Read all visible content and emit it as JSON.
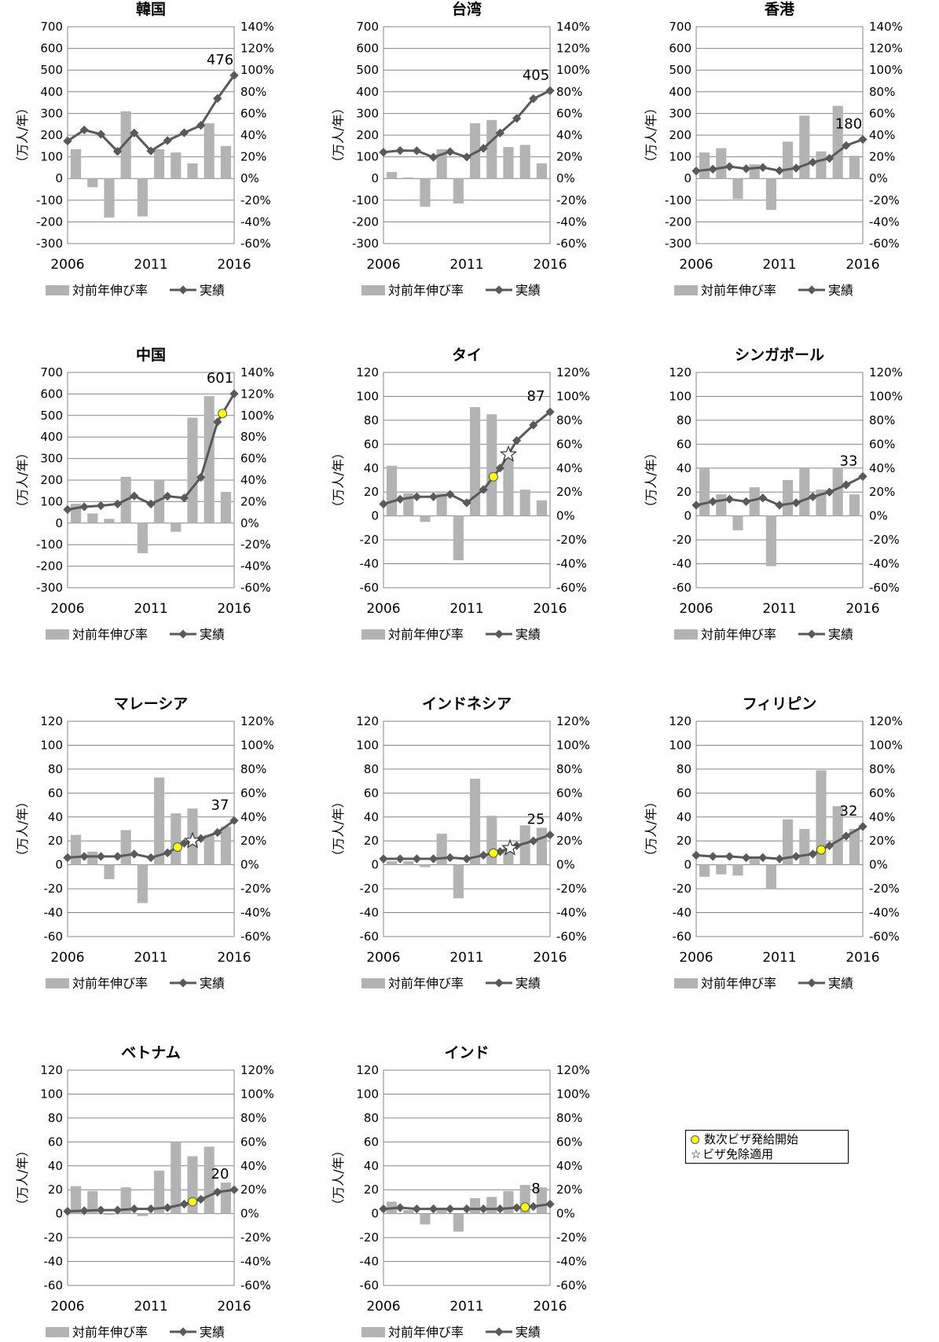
{
  "legend": {
    "bar_label": "対前年伸び率",
    "line_label": "実績"
  },
  "notes": {
    "multi_visa": "数次ビザ発給開始",
    "visa_exempt": "ビザ免除適用"
  },
  "marker_colors": {
    "multi_visa": "#ffff00",
    "visa_exempt": "#ffffff"
  },
  "colors": {
    "bar": "#b3b3b3",
    "line": "#595959"
  },
  "chart_data": [
    {
      "type": "bar+line",
      "title": "韓国",
      "ylabel": "（万人/年）",
      "ylim": [
        -300,
        700
      ],
      "y_ticks": [
        -300,
        -200,
        -100,
        0,
        100,
        200,
        300,
        400,
        500,
        600,
        700
      ],
      "y2lim": [
        -60,
        140
      ],
      "y2_ticks": [
        "-60%",
        "-40%",
        "-20%",
        "0%",
        "20%",
        "40%",
        "60%",
        "80%",
        "100%",
        "120%",
        "140%"
      ],
      "x": [
        2006,
        2007,
        2008,
        2009,
        2010,
        2011,
        2012,
        2013,
        2014,
        2015,
        2016
      ],
      "x_ticks": [
        "2006",
        "2011",
        "2016"
      ],
      "series": [
        {
          "name": "対前年伸び率",
          "type": "bar",
          "values": [
            null,
            27,
            -8,
            -36,
            62,
            -35,
            27,
            24,
            14,
            51,
            30
          ]
        },
        {
          "name": "実績",
          "type": "line",
          "values": [
            173,
            224,
            204,
            125,
            210,
            127,
            175,
            211,
            245,
            369,
            476
          ]
        }
      ],
      "last_label": "476",
      "multi_visa_year": null,
      "visa_exempt_year": null
    },
    {
      "type": "bar+line",
      "title": "台湾",
      "ylabel": "（万人/年）",
      "ylim": [
        -300,
        700
      ],
      "y_ticks": [
        -300,
        -200,
        -100,
        0,
        100,
        200,
        300,
        400,
        500,
        600,
        700
      ],
      "y2lim": [
        -60,
        140
      ],
      "y2_ticks": [
        "-60%",
        "-40%",
        "-20%",
        "0%",
        "20%",
        "40%",
        "60%",
        "80%",
        "100%",
        "120%",
        "140%"
      ],
      "x": [
        2006,
        2007,
        2008,
        2009,
        2010,
        2011,
        2012,
        2013,
        2014,
        2015,
        2016
      ],
      "x_ticks": [
        "2006",
        "2011",
        "2016"
      ],
      "series": [
        {
          "name": "対前年伸び率",
          "type": "bar",
          "values": [
            null,
            6,
            1,
            -26,
            27,
            -23,
            51,
            54,
            29,
            31,
            14
          ]
        },
        {
          "name": "実績",
          "type": "line",
          "values": [
            121,
            129,
            128,
            98,
            124,
            99,
            139,
            210,
            277,
            368,
            405
          ]
        }
      ],
      "last_label": "405",
      "multi_visa_year": null,
      "visa_exempt_year": null
    },
    {
      "type": "bar+line",
      "title": "香港",
      "ylabel": "（万人/年）",
      "ylim": [
        -300,
        700
      ],
      "y_ticks": [
        -300,
        -200,
        -100,
        0,
        100,
        200,
        300,
        400,
        500,
        600,
        700
      ],
      "y2lim": [
        -60,
        140
      ],
      "y2_ticks": [
        "-60%",
        "-40%",
        "-20%",
        "0%",
        "20%",
        "40%",
        "60%",
        "80%",
        "100%",
        "120%",
        "140%"
      ],
      "x": [
        2006,
        2007,
        2008,
        2009,
        2010,
        2011,
        2012,
        2013,
        2014,
        2015,
        2016
      ],
      "x_ticks": [
        "2006",
        "2011",
        "2016"
      ],
      "series": [
        {
          "name": "対前年伸び率",
          "type": "bar",
          "values": [
            null,
            24,
            28,
            -19,
            13,
            -29,
            34,
            58,
            25,
            67,
            21
          ]
        },
        {
          "name": "実績",
          "type": "line",
          "values": [
            35,
            43,
            55,
            45,
            51,
            36,
            48,
            75,
            93,
            152,
            180
          ]
        }
      ],
      "last_label": "180",
      "multi_visa_year": null,
      "visa_exempt_year": null
    },
    {
      "type": "bar+line",
      "title": "中国",
      "ylabel": "（万人/年）",
      "ylim": [
        -300,
        700
      ],
      "y_ticks": [
        -300,
        -200,
        -100,
        0,
        100,
        200,
        300,
        400,
        500,
        600,
        700
      ],
      "y2lim": [
        -60,
        140
      ],
      "y2_ticks": [
        "-60%",
        "-40%",
        "-20%",
        "0%",
        "20%",
        "40%",
        "60%",
        "80%",
        "100%",
        "120%",
        "140%"
      ],
      "x": [
        2006,
        2007,
        2008,
        2009,
        2010,
        2011,
        2012,
        2013,
        2014,
        2015,
        2016
      ],
      "x_ticks": [
        "2006",
        "2011",
        "2016"
      ],
      "series": [
        {
          "name": "対前年伸び率",
          "type": "bar",
          "values": [
            null,
            18,
            9,
            4,
            43,
            -28,
            40,
            -8,
            98,
            118,
            29
          ]
        },
        {
          "name": "実績",
          "type": "line",
          "values": [
            63,
            76,
            81,
            89,
            126,
            89,
            125,
            117,
            213,
            470,
            601
          ]
        }
      ],
      "last_label": "601",
      "multi_visa_year": 2015.3,
      "visa_exempt_year": null
    },
    {
      "type": "bar+line",
      "title": "タイ",
      "ylabel": "（万人/年）",
      "ylim": [
        -60,
        120
      ],
      "y_ticks": [
        -60,
        -40,
        -20,
        0,
        20,
        40,
        60,
        80,
        100,
        120
      ],
      "y2lim": [
        -60,
        120
      ],
      "y2_ticks": [
        "-60%",
        "-40%",
        "-20%",
        "0%",
        "20%",
        "40%",
        "60%",
        "80%",
        "100%",
        "120%"
      ],
      "x": [
        2006,
        2007,
        2008,
        2009,
        2010,
        2011,
        2012,
        2013,
        2014,
        2015,
        2016
      ],
      "x_ticks": [
        "2006",
        "2011",
        "2016"
      ],
      "series": [
        {
          "name": "対前年伸び率",
          "type": "bar",
          "values": [
            null,
            42,
            19,
            -5,
            19,
            -37,
            91,
            85,
            49,
            22,
            13
          ]
        },
        {
          "name": "実績",
          "type": "line",
          "values": [
            10,
            14,
            16,
            16,
            18,
            11,
            22,
            40,
            63,
            76,
            87
          ]
        }
      ],
      "last_label": "87",
      "multi_visa_year": 2012.6,
      "visa_exempt_year": 2013.5
    },
    {
      "type": "bar+line",
      "title": "シンガポール",
      "ylabel": "（万人/年）",
      "ylim": [
        -60,
        120
      ],
      "y_ticks": [
        -60,
        -40,
        -20,
        0,
        20,
        40,
        60,
        80,
        100,
        120
      ],
      "y2lim": [
        -60,
        120
      ],
      "y2_ticks": [
        "-60%",
        "-40%",
        "-20%",
        "0%",
        "20%",
        "40%",
        "60%",
        "80%",
        "100%",
        "120%"
      ],
      "x": [
        2006,
        2007,
        2008,
        2009,
        2010,
        2011,
        2012,
        2013,
        2014,
        2015,
        2016
      ],
      "x_ticks": [
        "2006",
        "2011",
        "2016"
      ],
      "series": [
        {
          "name": "対前年伸び率",
          "type": "bar",
          "values": [
            null,
            40,
            18,
            -12,
            24,
            -42,
            30,
            40,
            22,
            40,
            18
          ]
        },
        {
          "name": "実績",
          "type": "line",
          "values": [
            9,
            12,
            14,
            12,
            15,
            9,
            11,
            16,
            20,
            26,
            33
          ]
        }
      ],
      "last_label": "33",
      "multi_visa_year": null,
      "visa_exempt_year": null
    },
    {
      "type": "bar+line",
      "title": "マレーシア",
      "ylabel": "（万人/年）",
      "ylim": [
        -60,
        120
      ],
      "y_ticks": [
        -60,
        -40,
        -20,
        0,
        20,
        40,
        60,
        80,
        100,
        120
      ],
      "y2lim": [
        -60,
        120
      ],
      "y2_ticks": [
        "-60%",
        "-40%",
        "-20%",
        "0%",
        "20%",
        "40%",
        "60%",
        "80%",
        "100%",
        "120%"
      ],
      "x": [
        2006,
        2007,
        2008,
        2009,
        2010,
        2011,
        2012,
        2013,
        2014,
        2015,
        2016
      ],
      "x_ticks": [
        "2006",
        "2011",
        "2016"
      ],
      "series": [
        {
          "name": "対前年伸び率",
          "type": "bar",
          "values": [
            null,
            25,
            11,
            -12,
            29,
            -32,
            73,
            43,
            47,
            25,
            32
          ]
        },
        {
          "name": "実績",
          "type": "line",
          "values": [
            6,
            7,
            7,
            7,
            9,
            6,
            10,
            18,
            22,
            27,
            37
          ]
        }
      ],
      "last_label": "37",
      "multi_visa_year": 2012.6,
      "visa_exempt_year": 2013.5
    },
    {
      "type": "bar+line",
      "title": "インドネシア",
      "ylabel": "（万人/年）",
      "ylim": [
        -60,
        120
      ],
      "y_ticks": [
        -60,
        -40,
        -20,
        0,
        20,
        40,
        60,
        80,
        100,
        120
      ],
      "y2lim": [
        -60,
        120
      ],
      "y2_ticks": [
        "-60%",
        "-40%",
        "-20%",
        "0%",
        "20%",
        "40%",
        "60%",
        "80%",
        "100%",
        "120%"
      ],
      "x": [
        2006,
        2007,
        2008,
        2009,
        2010,
        2011,
        2012,
        2013,
        2014,
        2015,
        2016
      ],
      "x_ticks": [
        "2006",
        "2011",
        "2016"
      ],
      "series": [
        {
          "name": "対前年伸び率",
          "type": "bar",
          "values": [
            null,
            3,
            3,
            -2,
            26,
            -28,
            72,
            41,
            16,
            33,
            31
          ]
        },
        {
          "name": "実績",
          "type": "line",
          "values": [
            5,
            5,
            5,
            5,
            6,
            5,
            8,
            11,
            16,
            20,
            25
          ]
        }
      ],
      "last_label": "25",
      "multi_visa_year": 2012.6,
      "visa_exempt_year": 2013.6
    },
    {
      "type": "bar+line",
      "title": "フィリピン",
      "ylabel": "（万人/年）",
      "ylim": [
        -60,
        120
      ],
      "y_ticks": [
        -60,
        -40,
        -20,
        0,
        20,
        40,
        60,
        80,
        100,
        120
      ],
      "y2lim": [
        -60,
        120
      ],
      "y2_ticks": [
        "-60%",
        "-40%",
        "-20%",
        "0%",
        "20%",
        "40%",
        "60%",
        "80%",
        "100%",
        "120%"
      ],
      "x": [
        2006,
        2007,
        2008,
        2009,
        2010,
        2011,
        2012,
        2013,
        2014,
        2015,
        2016
      ],
      "x_ticks": [
        "2006",
        "2011",
        "2016"
      ],
      "series": [
        {
          "name": "対前年伸び率",
          "type": "bar",
          "values": [
            null,
            -10,
            -8,
            -9,
            5,
            -20,
            38,
            30,
            79,
            49,
            30
          ]
        },
        {
          "name": "実績",
          "type": "line",
          "values": [
            8,
            7,
            7,
            6,
            6,
            5,
            7,
            9,
            16,
            24,
            32
          ]
        }
      ],
      "last_label": "32",
      "multi_visa_year": 2013.5,
      "visa_exempt_year": null
    },
    {
      "type": "bar+line",
      "title": "ベトナム",
      "ylabel": "（万人/年）",
      "ylim": [
        -60,
        120
      ],
      "y_ticks": [
        -60,
        -40,
        -20,
        0,
        20,
        40,
        60,
        80,
        100,
        120
      ],
      "y2lim": [
        -60,
        120
      ],
      "y2_ticks": [
        "-60%",
        "-40%",
        "-20%",
        "0%",
        "20%",
        "40%",
        "60%",
        "80%",
        "100%",
        "120%"
      ],
      "x": [
        2006,
        2007,
        2008,
        2009,
        2010,
        2011,
        2012,
        2013,
        2014,
        2015,
        2016
      ],
      "x_ticks": [
        "2006",
        "2011",
        "2016"
      ],
      "series": [
        {
          "name": "対前年伸び率",
          "type": "bar",
          "values": [
            null,
            23,
            19,
            -1,
            22,
            -2,
            36,
            60,
            48,
            56,
            26
          ]
        },
        {
          "name": "実績",
          "type": "line",
          "values": [
            2,
            2.5,
            3,
            3,
            4,
            4,
            5,
            8,
            12,
            18,
            20
          ]
        }
      ],
      "last_label": "20",
      "multi_visa_year": 2013.5,
      "visa_exempt_year": null
    },
    {
      "type": "bar+line",
      "title": "インド",
      "ylabel": "（万人/年）",
      "ylim": [
        -60,
        120
      ],
      "y_ticks": [
        -60,
        -40,
        -20,
        0,
        20,
        40,
        60,
        80,
        100,
        120
      ],
      "y2lim": [
        -60,
        120
      ],
      "y2_ticks": [
        "-60%",
        "-40%",
        "-20%",
        "0%",
        "20%",
        "40%",
        "60%",
        "80%",
        "100%",
        "120%"
      ],
      "x": [
        2006,
        2007,
        2008,
        2009,
        2010,
        2011,
        2012,
        2013,
        2014,
        2015,
        2016
      ],
      "x_ticks": [
        "2006",
        "2011",
        "2016"
      ],
      "series": [
        {
          "name": "対前年伸び率",
          "type": "bar",
          "values": [
            null,
            10,
            3,
            -9,
            3,
            -15,
            13,
            14,
            19,
            24,
            22
          ]
        },
        {
          "name": "実績",
          "type": "line",
          "values": [
            4,
            5,
            4,
            4,
            4,
            4,
            4,
            4,
            5,
            6,
            8
          ]
        }
      ],
      "last_label": "8",
      "multi_visa_year": 2014.5,
      "visa_exempt_year": null
    }
  ]
}
